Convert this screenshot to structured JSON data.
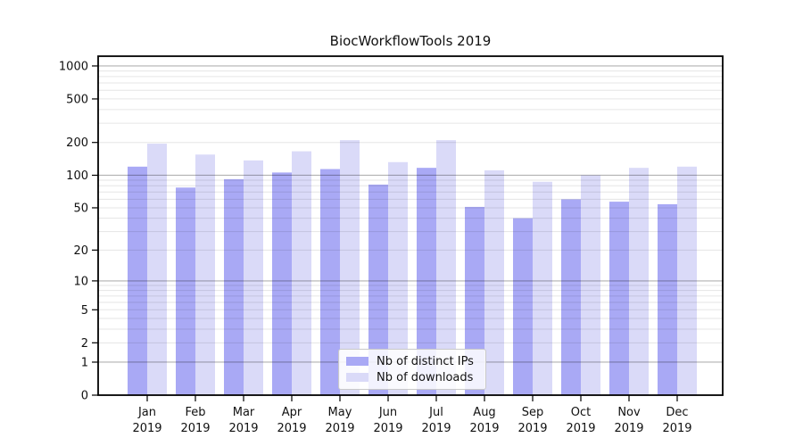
{
  "chart_data": {
    "type": "bar",
    "title": "BiocWorkflowTools 2019",
    "categories": [
      "Jan 2019",
      "Feb 2019",
      "Mar 2019",
      "Apr 2019",
      "May 2019",
      "Jun 2019",
      "Jul 2019",
      "Aug 2019",
      "Sep 2019",
      "Oct 2019",
      "Nov 2019",
      "Dec 2019"
    ],
    "series": [
      {
        "name": "Nb of distinct IPs",
        "color": "#a9a9f5",
        "values": [
          120,
          77,
          92,
          106,
          114,
          82,
          117,
          51,
          40,
          60,
          57,
          54
        ]
      },
      {
        "name": "Nb of downloads",
        "color": "#dadaf8",
        "values": [
          195,
          155,
          137,
          166,
          210,
          132,
          210,
          111,
          87,
          100,
          117,
          120
        ]
      }
    ],
    "y_ticks": [
      0,
      1,
      2,
      5,
      10,
      20,
      50,
      100,
      200,
      500,
      1000
    ],
    "y_major_gridlines": [
      1,
      10,
      100,
      1000
    ],
    "y_minor_gridlines": [
      2,
      3,
      4,
      5,
      6,
      7,
      8,
      9,
      20,
      30,
      40,
      50,
      60,
      70,
      80,
      90,
      200,
      300,
      400,
      500,
      600,
      700,
      800,
      900
    ],
    "y_scale": "log1p",
    "ylim": [
      0,
      1230
    ],
    "xlabel": "",
    "ylabel": "",
    "grid": true,
    "legend_position": "lower center"
  },
  "colors": {
    "background": "#ffffff",
    "axis": "#000000",
    "major_grid": "rgba(0,0,0,0.30)",
    "minor_grid": "rgba(0,0,0,0.10)",
    "text": "#111111"
  }
}
